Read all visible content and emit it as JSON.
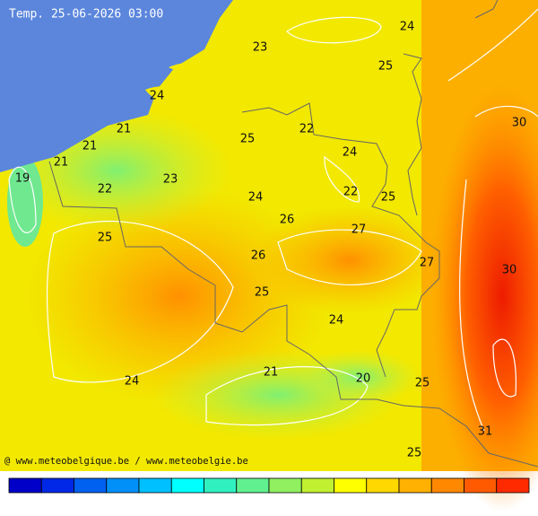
{
  "header": {
    "title": "Temp. 25-06-2026 03:00"
  },
  "labels": [
    "24",
    "23",
    "25",
    "24",
    "30",
    "21",
    "22",
    "25",
    "21",
    "24",
    "21",
    "19",
    "23",
    "22",
    "22",
    "24",
    "25",
    "26",
    "27",
    "25",
    "26",
    "27",
    "30",
    "25",
    "24",
    "21",
    "20",
    "24",
    "25",
    "31",
    "25"
  ],
  "footer": "@ www.meteobelgique.be / www.meteobelgie.be",
  "colorbar": [
    "#0000c8",
    "#0028e6",
    "#0060f0",
    "#0090f8",
    "#00c0ff",
    "#00ffff",
    "#30f0c0",
    "#60f090",
    "#90f060",
    "#c0f030",
    "#ffff00",
    "#ffd800",
    "#ffb000",
    "#ff8800",
    "#ff5a00",
    "#ff2a00"
  ]
}
